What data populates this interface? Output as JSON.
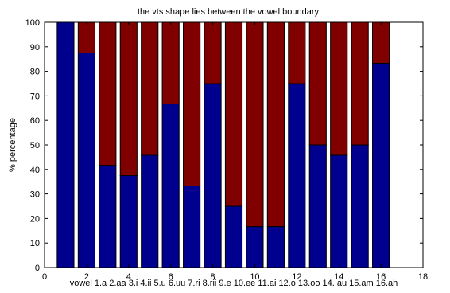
{
  "chart_data": {
    "type": "bar",
    "stacked": true,
    "title": "the vts shape lies between the vowel boundary",
    "xlabel": "vowel 1.a 2.aa 3.i 4.ii 5.u 6.uu 7.ri 8.rii 9.e 10.ee 11.ai 12.o 13.oo 14. au 15.am 16.ah",
    "ylabel": "% percentage",
    "x": [
      1,
      2,
      3,
      4,
      5,
      6,
      7,
      8,
      9,
      10,
      11,
      12,
      13,
      14,
      15,
      16
    ],
    "xlim": [
      0,
      18
    ],
    "ylim": [
      0,
      100
    ],
    "xticks": [
      "0",
      "2",
      "4",
      "6",
      "8",
      "10",
      "12",
      "14",
      "16",
      "18"
    ],
    "yticks": [
      "0",
      "10",
      "20",
      "30",
      "40",
      "50",
      "60",
      "70",
      "80",
      "90",
      "100"
    ],
    "grid": false,
    "series": [
      {
        "color": "#00008f",
        "values": [
          100,
          87.5,
          41.7,
          37.5,
          45.8,
          66.7,
          33.3,
          75,
          25,
          16.7,
          16.7,
          75,
          50,
          45.8,
          50,
          83.3
        ]
      },
      {
        "color": "#800000",
        "values": [
          0,
          12.5,
          58.3,
          62.5,
          54.2,
          33.3,
          66.7,
          25,
          75,
          83.3,
          83.3,
          25,
          50,
          54.2,
          50,
          16.7
        ]
      }
    ]
  }
}
